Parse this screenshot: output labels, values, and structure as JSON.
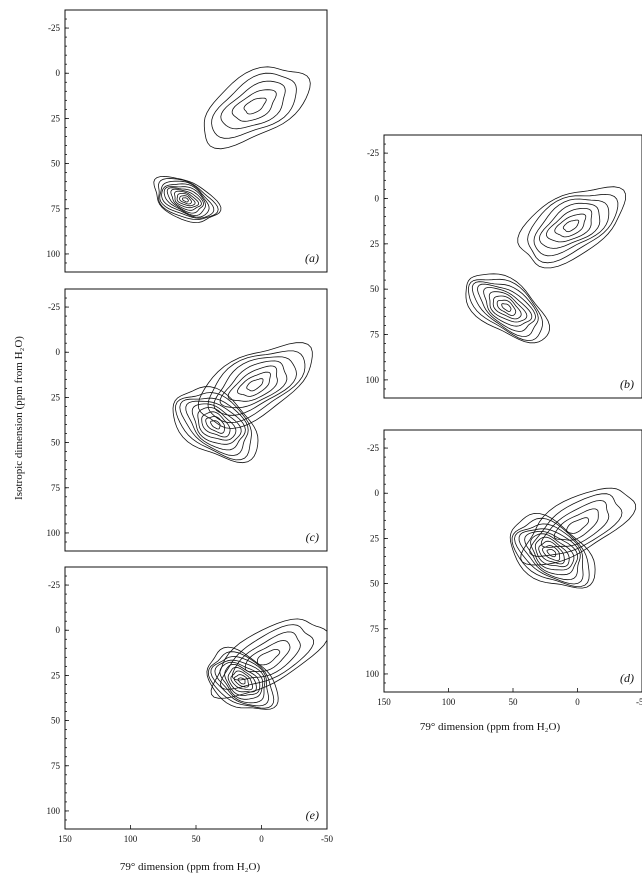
{
  "figure": {
    "y_axis_label": "Isotropic dimension (ppm from H₂O)",
    "x_axis_label_left": "79° dimension (ppm from H₂O)",
    "x_axis_label_right": "79° dimension (ppm from H₂O)"
  },
  "chart_data": [
    {
      "id": "a",
      "type": "contour",
      "label": "(a)",
      "xlim": [
        150,
        -50
      ],
      "ylim": [
        -35,
        110
      ],
      "y_ticks": [
        "-25",
        "0",
        "25",
        "50",
        "75",
        "100"
      ],
      "x_ticks": [],
      "peaks": [
        {
          "x": 58,
          "y": 70,
          "sx": 9,
          "sy": 16,
          "angle": 65,
          "levels": 11
        },
        {
          "x": 5,
          "y": 18,
          "sx": 28,
          "sy": 14,
          "angle": 30,
          "levels": 5
        }
      ]
    },
    {
      "id": "b",
      "type": "contour",
      "label": "(b)",
      "xlim": [
        150,
        -50
      ],
      "ylim": [
        -35,
        110
      ],
      "y_ticks": [
        "-25",
        "0",
        "25",
        "50",
        "75",
        "100"
      ],
      "x_ticks": [],
      "peaks": [
        {
          "x": 55,
          "y": 60,
          "sx": 12,
          "sy": 22,
          "angle": 55,
          "levels": 9
        },
        {
          "x": 5,
          "y": 15,
          "sx": 28,
          "sy": 14,
          "angle": 30,
          "levels": 7
        }
      ]
    },
    {
      "id": "c",
      "type": "contour",
      "label": "(c)",
      "xlim": [
        150,
        -50
      ],
      "ylim": [
        -35,
        110
      ],
      "y_ticks": [
        "-25",
        "0",
        "25",
        "50",
        "75",
        "100"
      ],
      "x_ticks": [],
      "peaks": [
        {
          "x": 35,
          "y": 40,
          "sx": 14,
          "sy": 22,
          "angle": 55,
          "levels": 9
        },
        {
          "x": 5,
          "y": 18,
          "sx": 30,
          "sy": 14,
          "angle": 30,
          "levels": 7
        }
      ]
    },
    {
      "id": "d",
      "type": "contour",
      "label": "(d)",
      "xlim": [
        150,
        -50
      ],
      "ylim": [
        -35,
        110
      ],
      "y_ticks": [
        "-25",
        "0",
        "25",
        "50",
        "75",
        "100"
      ],
      "x_ticks": [
        "150",
        "100",
        "50",
        "0",
        "-50"
      ],
      "peaks": [
        {
          "x": 20,
          "y": 33,
          "sx": 14,
          "sy": 22,
          "angle": 55,
          "levels": 10
        },
        {
          "x": 0,
          "y": 18,
          "sx": 30,
          "sy": 12,
          "angle": 30,
          "levels": 5
        }
      ]
    },
    {
      "id": "e",
      "type": "contour",
      "label": "(e)",
      "xlim": [
        150,
        -50
      ],
      "ylim": [
        -35,
        110
      ],
      "y_ticks": [
        "-25",
        "0",
        "25",
        "50",
        "75",
        "100"
      ],
      "x_ticks": [
        "150",
        "100",
        "50",
        "0",
        "-50"
      ],
      "peaks": [
        {
          "x": 15,
          "y": 28,
          "sx": 12,
          "sy": 18,
          "angle": 55,
          "levels": 10
        },
        {
          "x": -5,
          "y": 15,
          "sx": 30,
          "sy": 12,
          "angle": 30,
          "levels": 5
        }
      ]
    }
  ]
}
